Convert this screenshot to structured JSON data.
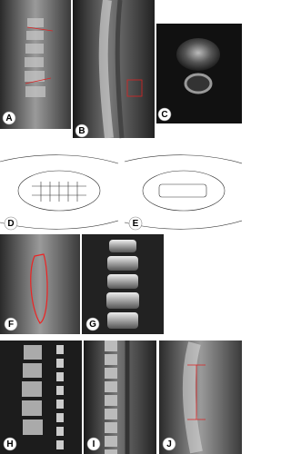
{
  "panels": [
    {
      "label": "A"
    },
    {
      "label": "B"
    },
    {
      "label": "C"
    },
    {
      "label": "D"
    },
    {
      "label": "E"
    },
    {
      "label": "F"
    },
    {
      "label": "G"
    },
    {
      "label": "H"
    },
    {
      "label": "I"
    },
    {
      "label": "J"
    }
  ]
}
